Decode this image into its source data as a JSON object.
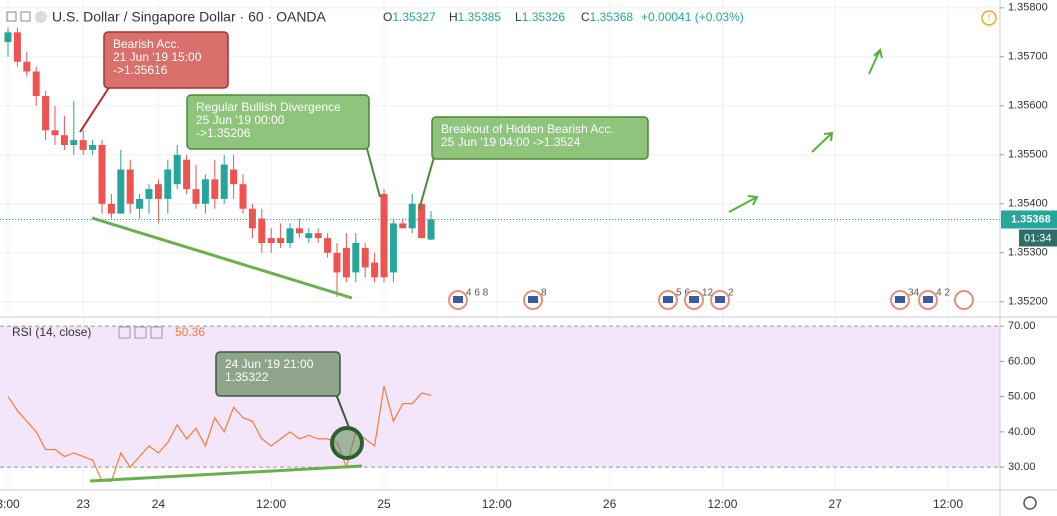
{
  "chart_data": [
    {
      "type": "candlestick",
      "title": "U.S. Dollar / Singapore Dollar · 60 · OANDA",
      "readout": [
        {
          "key": "O",
          "value": 1.35327
        },
        {
          "key": "H",
          "value": 1.35385
        },
        {
          "key": "L",
          "value": 1.35326
        },
        {
          "key": "C",
          "value": 1.35368
        }
      ],
      "change": "+0.00041 (+0.03%)",
      "countdown": "01:34",
      "up_color": "#26a69a",
      "down_color": "#ef5350",
      "categories": [
        "3:00",
        null,
        null,
        null,
        null,
        null,
        null,
        null,
        "23",
        null,
        null,
        null,
        null,
        null,
        null,
        null,
        "24",
        null,
        null,
        null,
        null,
        null,
        null,
        null,
        null,
        null,
        null,
        null,
        "12:00",
        null,
        null,
        null,
        null,
        null,
        null,
        null,
        null,
        null,
        null,
        null,
        "25",
        null,
        null,
        null,
        null,
        null,
        null,
        null,
        null,
        null,
        null,
        null,
        "12:00",
        null,
        null,
        null,
        null,
        null,
        null,
        null,
        null,
        null,
        null,
        null,
        "26",
        null,
        null,
        null,
        null,
        null,
        null,
        null,
        null,
        null,
        null,
        null,
        "12:00",
        null,
        null,
        null,
        null,
        null,
        null,
        null,
        null,
        null,
        null,
        null,
        "27",
        null,
        null,
        null,
        null,
        null,
        null,
        null,
        null,
        null,
        null,
        null,
        "12:00",
        null
      ],
      "open": [
        1.3573,
        1.3575,
        1.3569,
        1.3567,
        1.3562,
        1.3555,
        1.3554,
        1.3552,
        1.3553,
        1.3551,
        1.3552,
        1.354,
        1.3538,
        1.3547,
        1.3539,
        1.3541,
        1.3544,
        1.3541,
        1.3544,
        1.3549,
        1.3543,
        1.354,
        1.3545,
        1.3541,
        1.3547,
        1.3544,
        1.3539,
        1.3537,
        1.3533,
        1.3533,
        1.3532,
        1.3535,
        1.3533,
        1.3534,
        1.3533,
        1.353,
        1.3531,
        1.3526,
        1.3531,
        1.3528,
        1.3542,
        1.3526,
        1.3536,
        1.3535,
        1.354,
        1.35327,
        null,
        null,
        null,
        null,
        null,
        null,
        null,
        null,
        null,
        null,
        null,
        null,
        null,
        null,
        null,
        null,
        null,
        null,
        null,
        null,
        null,
        null,
        null,
        null,
        null,
        null,
        null,
        null,
        null,
        null,
        null,
        null,
        null,
        null,
        null,
        null,
        null,
        null,
        null,
        null,
        null,
        null,
        null,
        null,
        null,
        null,
        null,
        null,
        null,
        null,
        null,
        null,
        null,
        null,
        null,
        null
      ],
      "high": [
        1.3576,
        1.3576,
        1.3571,
        1.3568,
        1.3563,
        1.356,
        1.3558,
        1.3561,
        1.3555,
        1.3553,
        1.3553,
        1.3542,
        1.3551,
        1.3549,
        1.3542,
        1.3544,
        1.3545,
        1.3549,
        1.3552,
        1.355,
        1.3548,
        1.3546,
        1.3549,
        1.355,
        1.355,
        1.3546,
        1.354,
        1.3539,
        1.3535,
        1.3536,
        1.3536,
        1.3537,
        1.3535,
        1.3535,
        1.3534,
        1.3532,
        1.3534,
        1.3534,
        1.3532,
        1.353,
        1.3543,
        1.3537,
        1.3537,
        1.3542,
        1.3541,
        1.35385,
        null,
        null,
        null,
        null,
        null,
        null,
        null,
        null,
        null,
        null,
        null,
        null,
        null,
        null,
        null,
        null,
        null,
        null,
        null,
        null,
        null,
        null,
        null,
        null,
        null,
        null,
        null,
        null,
        null,
        null,
        null,
        null,
        null,
        null,
        null,
        null,
        null,
        null,
        null,
        null,
        null,
        null,
        null,
        null,
        null,
        null,
        null,
        null,
        null,
        null,
        null,
        null,
        null,
        null,
        null,
        null
      ],
      "low": [
        1.357,
        1.3568,
        1.3566,
        1.356,
        1.3553,
        1.3552,
        1.3551,
        1.355,
        1.355,
        1.355,
        1.3538,
        1.3537,
        1.3538,
        1.3538,
        1.3537,
        1.3538,
        1.3536,
        1.3538,
        1.3543,
        1.3542,
        1.3539,
        1.3538,
        1.3539,
        1.354,
        1.3541,
        1.3538,
        1.3533,
        1.353,
        1.353,
        1.3531,
        1.3531,
        1.3533,
        1.3532,
        1.3532,
        1.3529,
        1.3521,
        1.3524,
        1.3524,
        1.3525,
        1.3524,
        1.3524,
        1.3524,
        1.3535,
        1.3534,
        1.3533,
        1.35326,
        null,
        null,
        null,
        null,
        null,
        null,
        null,
        null,
        null,
        null,
        null,
        null,
        null,
        null,
        null,
        null,
        null,
        null,
        null,
        null,
        null,
        null,
        null,
        null,
        null,
        null,
        null,
        null,
        null,
        null,
        null,
        null,
        null,
        null,
        null,
        null,
        null,
        null,
        null,
        null,
        null,
        null,
        null,
        null,
        null,
        null,
        null,
        null,
        null,
        null,
        null,
        null,
        null,
        null,
        null,
        null
      ],
      "close": [
        1.3575,
        1.3569,
        1.3567,
        1.3562,
        1.3555,
        1.3554,
        1.3552,
        1.3553,
        1.3551,
        1.3552,
        1.354,
        1.3538,
        1.3547,
        1.354,
        1.3541,
        1.3543,
        1.3541,
        1.3547,
        1.355,
        1.3543,
        1.354,
        1.3545,
        1.3541,
        1.3548,
        1.3544,
        1.3539,
        1.3535,
        1.3532,
        1.3532,
        1.3532,
        1.3535,
        1.3534,
        1.3534,
        1.3533,
        1.353,
        1.3526,
        1.3525,
        1.3532,
        1.3527,
        1.3525,
        1.3525,
        1.3536,
        1.3535,
        1.354,
        1.3533,
        1.35368,
        null,
        null,
        null,
        null,
        null,
        null,
        null,
        null,
        null,
        null,
        null,
        null,
        null,
        null,
        null,
        null,
        null,
        null,
        null,
        null,
        null,
        null,
        null,
        null,
        null,
        null,
        null,
        null,
        null,
        null,
        null,
        null,
        null,
        null,
        null,
        null,
        null,
        null,
        null,
        null,
        null,
        null,
        null,
        null,
        null,
        null,
        null,
        null,
        null,
        null,
        null,
        null,
        null,
        null,
        null,
        null
      ],
      "ylim": [
        1.35171,
        1.35816
      ],
      "yticks": [
        {
          "value": 1.358,
          "label": "1.35800"
        },
        {
          "value": 1.357,
          "label": "1.35700"
        },
        {
          "value": 1.356,
          "label": "1.35600"
        },
        {
          "value": 1.355,
          "label": "1.35500"
        },
        {
          "value": 1.354,
          "label": "1.35400"
        },
        {
          "value": 1.353,
          "label": "1.35300"
        },
        {
          "value": 1.352,
          "label": "1.35200"
        }
      ],
      "grid": true,
      "annotations": [
        {
          "text": [
            "Bearish Acc.",
            "21 Jun '19 15:00",
            "->1.35616"
          ]
        },
        {
          "text": [
            "Regular Bullish Divergence",
            "25 Jun '19 00:00",
            "->1.35206"
          ]
        },
        {
          "text": [
            "Breakout of Hidden Bearish Acc.",
            "25 Jun '19 04:00 ->1.3524"
          ]
        }
      ],
      "events": [
        "4 6 8",
        "8",
        "5 6",
        "12",
        "2",
        "34",
        "4 2"
      ]
    },
    {
      "type": "line",
      "title": "RSI (14, close)",
      "color": "#f57c3a",
      "values": [
        50,
        46,
        43,
        40,
        35,
        35,
        33,
        34,
        33,
        32,
        26,
        26,
        34,
        30,
        33,
        36,
        34,
        37,
        42,
        38,
        41,
        36,
        44,
        40,
        47,
        44,
        43,
        38,
        36,
        38,
        40,
        38,
        39,
        38,
        38,
        37,
        30,
        40,
        38,
        36,
        53,
        43,
        48,
        48,
        51,
        50.36
      ],
      "band": [
        30,
        70
      ],
      "band_color": "#f3e6fb",
      "ylim": [
        23.5,
        72.3
      ],
      "yticks": [
        {
          "value": 70,
          "label": "70.00"
        },
        {
          "value": 60,
          "label": "60.00"
        },
        {
          "value": 50,
          "label": "50.00"
        },
        {
          "value": 40,
          "label": "40.00"
        },
        {
          "value": 30,
          "label": "30.00"
        }
      ],
      "annotations": [
        {
          "text": [
            "24 Jun '19 21:00",
            "1.35322"
          ]
        }
      ]
    }
  ]
}
